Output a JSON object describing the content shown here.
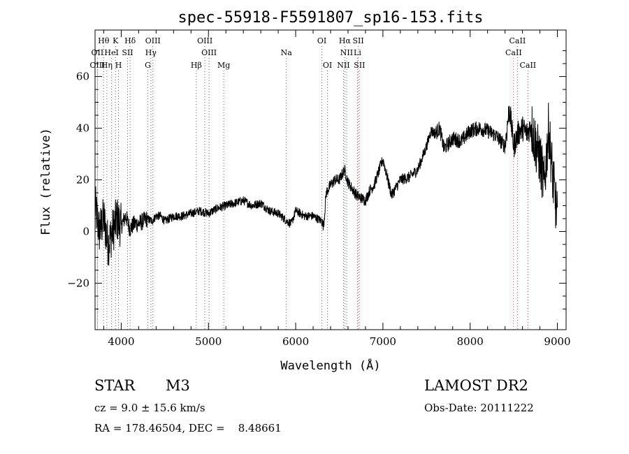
{
  "chart_data": {
    "type": "line",
    "title": "spec-55918-F5591807_sp16-153.fits",
    "xlabel": "Wavelength (Å)",
    "ylabel": "Flux (relative)",
    "xlim": [
      3700,
      9100
    ],
    "ylim": [
      -38,
      78
    ],
    "x_ticks": [
      4000,
      5000,
      6000,
      7000,
      8000,
      9000
    ],
    "y_ticks": [
      -20,
      0,
      20,
      40,
      60
    ],
    "grid": false,
    "series": [
      {
        "color": "#000000",
        "x": [
          3700,
          3750,
          3800,
          3850,
          3900,
          3950,
          4000,
          4050,
          4100,
          4150,
          4200,
          4250,
          4300,
          4350,
          4400,
          4450,
          4500,
          4600,
          4700,
          4800,
          4900,
          5000,
          5100,
          5200,
          5300,
          5400,
          5500,
          5600,
          5700,
          5800,
          5900,
          5950,
          6000,
          6100,
          6200,
          6300,
          6320,
          6350,
          6400,
          6450,
          6500,
          6560,
          6600,
          6700,
          6800,
          6850,
          6900,
          6950,
          7000,
          7050,
          7100,
          7200,
          7300,
          7400,
          7500,
          7550,
          7600,
          7650,
          7700,
          7800,
          7900,
          8000,
          8100,
          8200,
          8300,
          8400,
          8450,
          8500,
          8550,
          8600,
          8650,
          8700,
          8750,
          8800,
          8850,
          8900,
          8950,
          9000
        ],
        "y": [
          10,
          0,
          5,
          -5,
          0,
          5,
          2,
          6,
          1,
          3,
          3,
          4,
          5,
          4,
          6,
          6,
          4,
          6,
          6,
          7,
          8,
          7,
          9,
          10,
          11,
          12,
          10,
          11,
          8,
          7,
          4,
          3,
          8,
          6,
          6,
          4,
          2,
          15,
          18,
          20,
          20,
          24,
          19,
          14,
          12,
          16,
          18,
          23,
          28,
          21,
          14,
          20,
          21,
          24,
          33,
          39,
          38,
          40,
          32,
          36,
          35,
          39,
          40,
          39,
          37,
          33,
          48,
          33,
          38,
          40,
          38,
          41,
          34,
          28,
          18,
          40,
          20,
          5
        ]
      }
    ],
    "line_markers": [
      {
        "label": "Hθ",
        "x": 3798,
        "color": "#606060",
        "row": 0
      },
      {
        "label": "K",
        "x": 3934,
        "color": "#606060",
        "row": 0
      },
      {
        "label": "Hδ",
        "x": 4102,
        "color": "#606060",
        "row": 0
      },
      {
        "label": "OIII",
        "x": 4363,
        "color": "#606060",
        "row": 0
      },
      {
        "label": "OIII",
        "x": 4959,
        "color": "#606060",
        "row": 0
      },
      {
        "label": "OI",
        "x": 6300,
        "color": "#606060",
        "row": 0
      },
      {
        "label": "Hα",
        "x": 6563,
        "color": "#606060",
        "row": 0
      },
      {
        "label": "SII",
        "x": 6717,
        "color": "#c04040",
        "row": 0
      },
      {
        "label": "CaII",
        "x": 8542,
        "color": "#c04040",
        "row": 0
      },
      {
        "label": "OII",
        "x": 3727,
        "color": "#606060",
        "row": 1
      },
      {
        "label": "HeI",
        "x": 3889,
        "color": "#606060",
        "row": 1
      },
      {
        "label": "SII",
        "x": 4072,
        "color": "#606060",
        "row": 1
      },
      {
        "label": "Hγ",
        "x": 4340,
        "color": "#606060",
        "row": 1
      },
      {
        "label": "OIII",
        "x": 5007,
        "color": "#606060",
        "row": 1
      },
      {
        "label": "Na",
        "x": 5893,
        "color": "#606060",
        "row": 1
      },
      {
        "label": "NII",
        "x": 6584,
        "color": "#606060",
        "row": 1
      },
      {
        "label": "Li",
        "x": 6708,
        "color": "#c04040",
        "row": 1
      },
      {
        "label": "CaII",
        "x": 8498,
        "color": "#c04040",
        "row": 1
      },
      {
        "label": "OIII",
        "x": 3727,
        "color": "#606060",
        "row": 2
      },
      {
        "label": "Hη",
        "x": 3835,
        "color": "#606060",
        "row": 2
      },
      {
        "label": "H",
        "x": 3969,
        "color": "#606060",
        "row": 2
      },
      {
        "label": "G",
        "x": 4305,
        "color": "#606060",
        "row": 2
      },
      {
        "label": "Hβ",
        "x": 4861,
        "color": "#606060",
        "row": 2
      },
      {
        "label": "Mg",
        "x": 5175,
        "color": "#606060",
        "row": 2
      },
      {
        "label": "OI",
        "x": 6364,
        "color": "#606060",
        "row": 2
      },
      {
        "label": "NII",
        "x": 6548,
        "color": "#606060",
        "row": 2
      },
      {
        "label": "SII",
        "x": 6731,
        "color": "#c04040",
        "row": 2
      },
      {
        "label": "CaII",
        "x": 8662,
        "color": "#c04040",
        "row": 2
      }
    ]
  },
  "info": {
    "class_label": "STAR",
    "subclass_label": "M3",
    "survey": "LAMOST DR2",
    "cz": "cz = 9.0 ± 15.6 km/s",
    "obs_date": "Obs-Date: 20111222",
    "coords": "RA = 178.46504, DEC =    8.48661"
  }
}
